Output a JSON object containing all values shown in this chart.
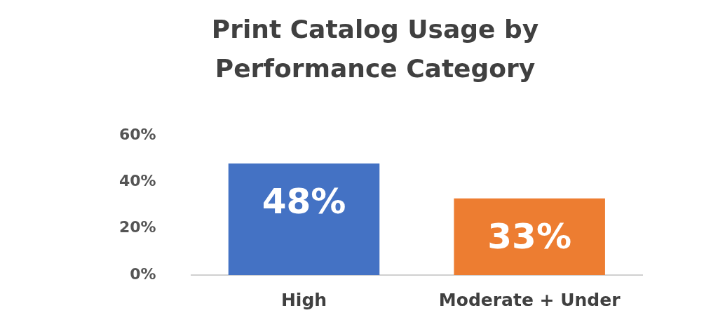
{
  "chart_data": {
    "type": "bar",
    "title": "Print Catalog Usage by Performance Category",
    "categories": [
      "High",
      "Moderate + Under"
    ],
    "values": [
      48,
      33
    ],
    "colors": [
      "#4472c4",
      "#ed7d31"
    ],
    "ylim": [
      0,
      60
    ],
    "yticks": [
      {
        "value": 0,
        "label": "0%"
      },
      {
        "value": 20,
        "label": "20%"
      },
      {
        "value": 40,
        "label": "40%"
      },
      {
        "value": 60,
        "label": "60%"
      }
    ],
    "value_labels": [
      "48%",
      "33%"
    ],
    "grid": false,
    "legend": false
  }
}
